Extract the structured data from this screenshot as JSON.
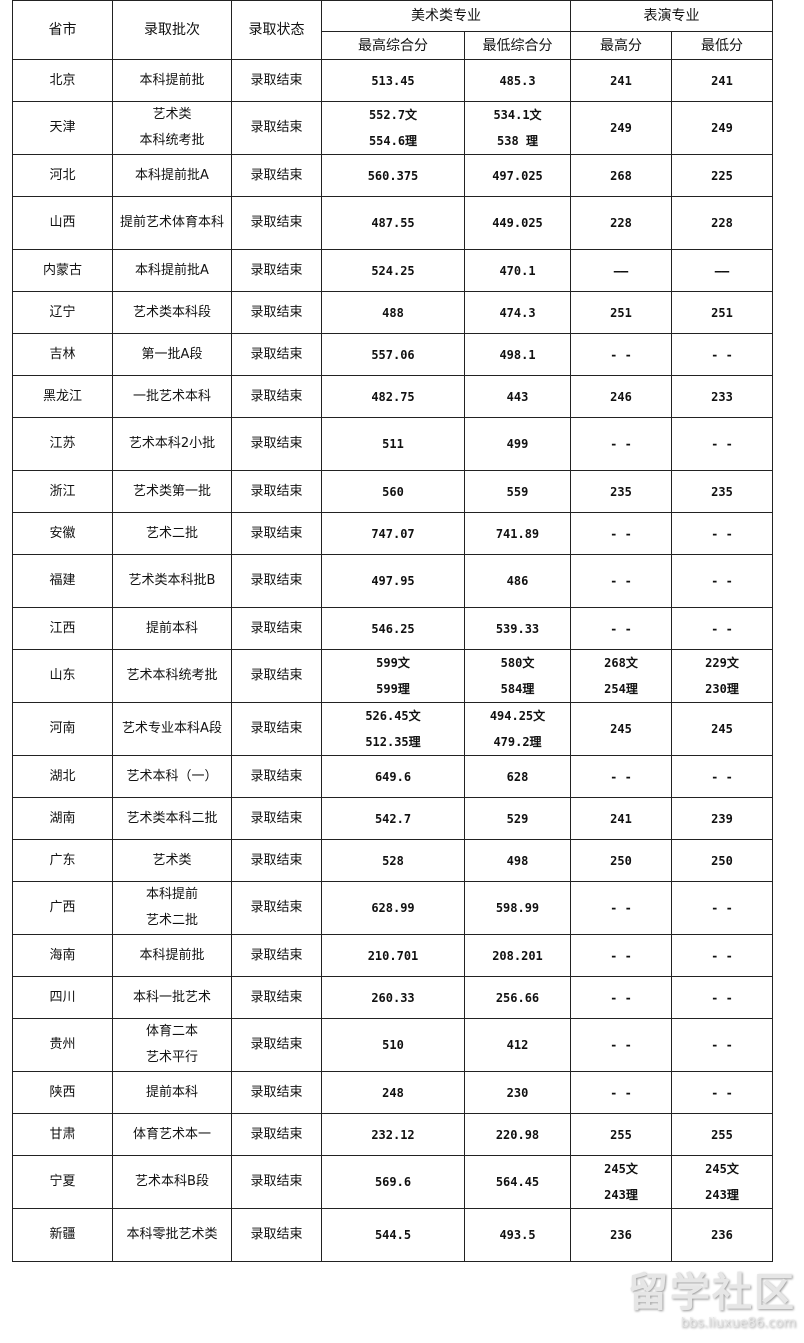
{
  "header": {
    "province": "省市",
    "batch": "录取批次",
    "status": "录取状态",
    "art_group": "美术类专业",
    "art_max": "最高综合分",
    "art_min": "最低综合分",
    "perf_group": "表演专业",
    "perf_max": "最高分",
    "perf_min": "最低分"
  },
  "rows": [
    [
      "北京",
      "本科提前批",
      "录取结束",
      "513.45",
      "485.3",
      "241",
      "241"
    ],
    [
      "天津",
      "艺术类\n本科统考批",
      "录取结束",
      "552.7文\n554.6理",
      "534.1文\n538 理",
      "249",
      "249"
    ],
    [
      "河北",
      "本科提前批A",
      "录取结束",
      "560.375",
      "497.025",
      "268",
      "225"
    ],
    [
      "山西",
      "提前艺术体育本科",
      "录取结束",
      "487.55",
      "449.025",
      "228",
      "228"
    ],
    [
      "内蒙古",
      "本科提前批A",
      "录取结束",
      "524.25",
      "470.1",
      "——",
      "——"
    ],
    [
      "辽宁",
      "艺术类本科段",
      "录取结束",
      "488",
      "474.3",
      "251",
      "251"
    ],
    [
      "吉林",
      "第一批A段",
      "录取结束",
      "557.06",
      "498.1",
      "- -",
      "- -"
    ],
    [
      "黑龙江",
      "一批艺术本科",
      "录取结束",
      "482.75",
      "443",
      "246",
      "233"
    ],
    [
      "江苏",
      "艺术本科2小批",
      "录取结束",
      "511",
      "499",
      "- -",
      "- -"
    ],
    [
      "浙江",
      "艺术类第一批",
      "录取结束",
      "560",
      "559",
      "235",
      "235"
    ],
    [
      "安徽",
      "艺术二批",
      "录取结束",
      "747.07",
      "741.89",
      "- -",
      "- -"
    ],
    [
      "福建",
      "艺术类本科批B",
      "录取结束",
      "497.95",
      "486",
      "- -",
      "- -"
    ],
    [
      "江西",
      "提前本科",
      "录取结束",
      "546.25",
      "539.33",
      "- -",
      "- -"
    ],
    [
      "山东",
      "艺术本科统考批",
      "录取结束",
      "599文\n599理",
      "580文\n584理",
      "268文\n254理",
      "229文\n230理"
    ],
    [
      "河南",
      "艺术专业本科A段",
      "录取结束",
      "526.45文\n512.35理",
      "494.25文\n479.2理",
      "245",
      "245"
    ],
    [
      "湖北",
      "艺术本科（一）",
      "录取结束",
      "649.6",
      "628",
      "- -",
      "- -"
    ],
    [
      "湖南",
      "艺术类本科二批",
      "录取结束",
      "542.7",
      "529",
      "241",
      "239"
    ],
    [
      "广东",
      "艺术类",
      "录取结束",
      "528",
      "498",
      "250",
      "250"
    ],
    [
      "广西",
      "本科提前\n艺术二批",
      "录取结束",
      "628.99",
      "598.99",
      "- -",
      "- -"
    ],
    [
      "海南",
      "本科提前批",
      "录取结束",
      "210.701",
      "208.201",
      "- -",
      "- -"
    ],
    [
      "四川",
      "本科一批艺术",
      "录取结束",
      "260.33",
      "256.66",
      "- -",
      "- -"
    ],
    [
      "贵州",
      "体育二本\n艺术平行",
      "录取结束",
      "510",
      "412",
      "- -",
      "- -"
    ],
    [
      "陕西",
      "提前本科",
      "录取结束",
      "248",
      "230",
      "- -",
      "- -"
    ],
    [
      "甘肃",
      "体育艺术本一",
      "录取结束",
      "232.12",
      "220.98",
      "255",
      "255"
    ],
    [
      "宁夏",
      "艺术本科B段",
      "录取结束",
      "569.6",
      "564.45",
      "245文\n243理",
      "245文\n243理"
    ],
    [
      "新疆",
      "本科零批艺术类",
      "录取结束",
      "544.5",
      "493.5",
      "236",
      "236"
    ]
  ],
  "tall_rows": [
    1,
    3,
    8,
    11,
    13,
    14,
    18,
    21,
    24,
    25
  ],
  "watermark": {
    "logo": "留学社区",
    "url": "bbs.liuxue86.com"
  }
}
